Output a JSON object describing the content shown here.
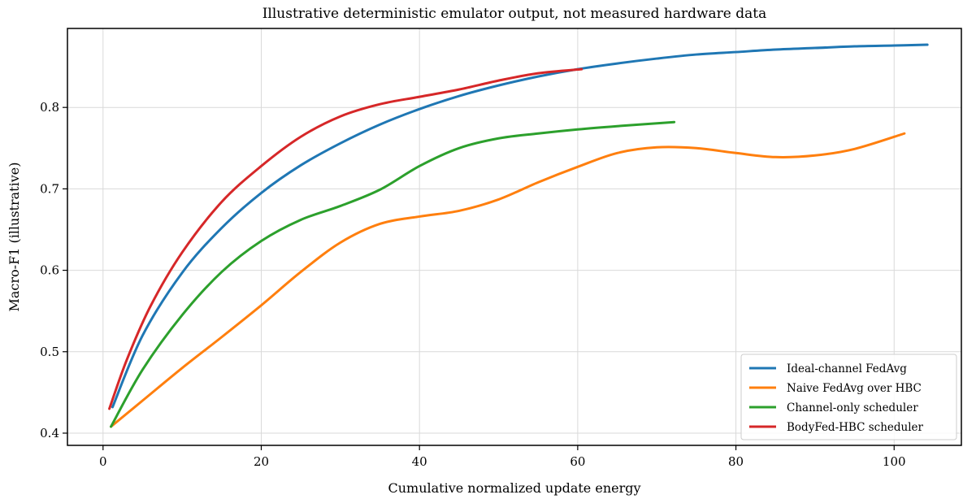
{
  "chart_data": {
    "type": "line",
    "title": "Illustrative deterministic emulator output, not measured hardware data",
    "xlabel": "Cumulative normalized update energy",
    "ylabel": "Macro-F1 (illustrative)",
    "xlim": [
      -4.5,
      108.5
    ],
    "ylim": [
      0.385,
      0.897
    ],
    "xticks": [
      0,
      20,
      40,
      60,
      80,
      100
    ],
    "yticks": [
      0.4,
      0.5,
      0.6,
      0.7,
      0.8
    ],
    "grid": true,
    "legend_position": "lower-right",
    "series": [
      {
        "name": "Ideal-channel FedAvg",
        "color": "#1f77b4",
        "x": [
          1.2,
          5,
          10,
          15,
          20,
          25,
          30,
          35,
          40,
          45,
          50,
          55,
          60,
          65,
          70,
          75,
          80,
          85,
          90,
          95,
          100,
          104.2
        ],
        "y": [
          0.432,
          0.52,
          0.597,
          0.652,
          0.695,
          0.729,
          0.756,
          0.779,
          0.798,
          0.814,
          0.827,
          0.838,
          0.847,
          0.854,
          0.86,
          0.865,
          0.868,
          0.871,
          0.873,
          0.875,
          0.876,
          0.877
        ]
      },
      {
        "name": "Naive FedAvg over HBC",
        "color": "#ff7f0e",
        "x": [
          1,
          5,
          10,
          15,
          20,
          25,
          30,
          35,
          40,
          45,
          50,
          55,
          60,
          65,
          70,
          75,
          80,
          85,
          90,
          95,
          101.3
        ],
        "y": [
          0.408,
          0.44,
          0.48,
          0.518,
          0.557,
          0.598,
          0.634,
          0.657,
          0.666,
          0.673,
          0.687,
          0.708,
          0.727,
          0.744,
          0.751,
          0.75,
          0.744,
          0.739,
          0.741,
          0.749,
          0.768
        ]
      },
      {
        "name": "Channel-only scheduler",
        "color": "#2ca02c",
        "x": [
          1,
          5,
          10,
          15,
          20,
          25,
          30,
          35,
          40,
          45,
          50,
          55,
          60,
          65,
          72.2
        ],
        "y": [
          0.408,
          0.478,
          0.545,
          0.598,
          0.636,
          0.662,
          0.679,
          0.699,
          0.728,
          0.75,
          0.762,
          0.768,
          0.773,
          0.777,
          0.782
        ]
      },
      {
        "name": "BodyFed-HBC scheduler",
        "color": "#d62728",
        "x": [
          0.8,
          3,
          6,
          10,
          15,
          20,
          25,
          30,
          35,
          40,
          45,
          50,
          55,
          60.5
        ],
        "y": [
          0.43,
          0.49,
          0.556,
          0.622,
          0.684,
          0.728,
          0.764,
          0.789,
          0.804,
          0.813,
          0.822,
          0.833,
          0.842,
          0.847
        ]
      }
    ]
  }
}
